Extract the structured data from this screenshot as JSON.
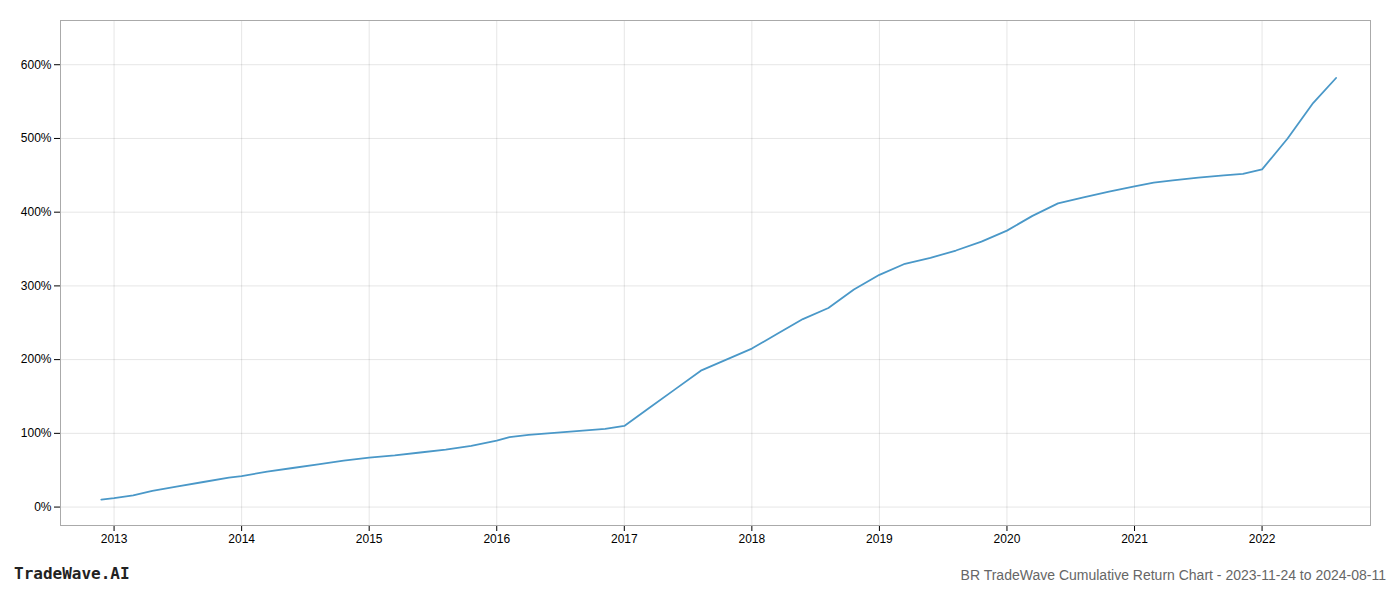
{
  "chart_data": {
    "type": "line",
    "title": "BR TradeWave Cumulative Return Chart - 2023-11-24 to 2024-08-11",
    "annotations": [
      "TradeWave.AI"
    ],
    "x": [
      2012.9,
      2013.0,
      2013.15,
      2013.3,
      2013.5,
      2013.7,
      2013.9,
      2014.0,
      2014.2,
      2014.4,
      2014.6,
      2014.8,
      2015.0,
      2015.2,
      2015.4,
      2015.6,
      2015.8,
      2016.0,
      2016.1,
      2016.25,
      2016.4,
      2016.55,
      2016.7,
      2016.85,
      2017.0,
      2017.2,
      2017.4,
      2017.6,
      2017.8,
      2018.0,
      2018.2,
      2018.4,
      2018.6,
      2018.8,
      2019.0,
      2019.2,
      2019.4,
      2019.6,
      2019.8,
      2020.0,
      2020.2,
      2020.4,
      2020.6,
      2020.8,
      2021.0,
      2021.15,
      2021.3,
      2021.5,
      2021.7,
      2021.85,
      2022.0,
      2022.2,
      2022.4,
      2022.58
    ],
    "values": [
      10,
      12,
      16,
      22,
      28,
      34,
      40,
      42,
      48,
      53,
      58,
      63,
      67,
      70,
      74,
      78,
      83,
      90,
      95,
      98,
      100,
      102,
      104,
      106,
      110,
      135,
      160,
      185,
      200,
      215,
      235,
      255,
      270,
      295,
      315,
      330,
      338,
      348,
      360,
      375,
      395,
      412,
      420,
      428,
      435,
      440,
      443,
      447,
      450,
      452,
      458,
      500,
      548,
      582
    ],
    "color": "#4a98c8",
    "xlim": [
      2012.58,
      2022.85
    ],
    "xticks": [
      2013,
      2014,
      2015,
      2016,
      2017,
      2018,
      2019,
      2020,
      2021,
      2022
    ],
    "ylim": [
      -25,
      660
    ],
    "yticks": [
      {
        "value": 0,
        "label": "0%"
      },
      {
        "value": 100,
        "label": "100%"
      },
      {
        "value": 200,
        "label": "200%"
      },
      {
        "value": 300,
        "label": "300%"
      },
      {
        "value": 400,
        "label": "400%"
      },
      {
        "value": 500,
        "label": "500%"
      },
      {
        "value": 600,
        "label": "600%"
      }
    ],
    "grid": true
  }
}
